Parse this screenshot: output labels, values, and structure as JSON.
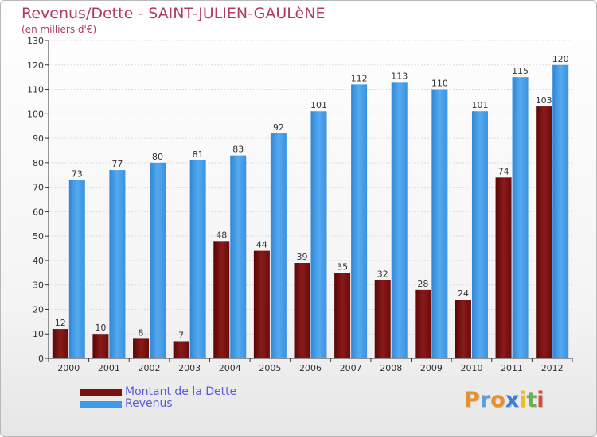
{
  "chart_data": {
    "type": "bar",
    "title": "Revenus/Dette - SAINT-JULIEN-GAULèNE",
    "subtitle": "(en milliers d'€)",
    "categories": [
      "2000",
      "2001",
      "2002",
      "2003",
      "2004",
      "2005",
      "2006",
      "2007",
      "2008",
      "2009",
      "2010",
      "2011",
      "2012"
    ],
    "series": [
      {
        "name": "Montant de la Dette",
        "color": "#7a1010",
        "values": [
          12,
          10,
          8,
          7,
          48,
          44,
          39,
          35,
          32,
          28,
          24,
          74,
          103
        ]
      },
      {
        "name": "Revenus",
        "color": "#3f9be5",
        "values": [
          73,
          77,
          80,
          81,
          83,
          92,
          101,
          112,
          113,
          110,
          101,
          115,
          120
        ]
      }
    ],
    "ylim": [
      0,
      130
    ],
    "yticks": [
      0,
      10,
      20,
      30,
      40,
      50,
      60,
      70,
      80,
      90,
      100,
      110,
      120,
      130
    ],
    "grid": true,
    "legend_position": "bottom-left"
  },
  "logo": {
    "letters": [
      {
        "char": "P",
        "color": "#e8902a"
      },
      {
        "char": "r",
        "color": "#5aa0d8"
      },
      {
        "char": "o",
        "color": "#e8902a"
      },
      {
        "char": "x",
        "color": "#3a7fd0"
      },
      {
        "char": "i",
        "color": "#e8c020"
      },
      {
        "char": "t",
        "color": "#6ab04c"
      },
      {
        "char": "i",
        "color": "#d84a3a"
      }
    ]
  }
}
